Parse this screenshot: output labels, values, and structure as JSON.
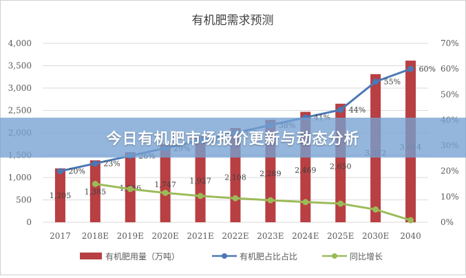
{
  "banner": {
    "text": "今日有机肥市场报价更新与动态分析"
  },
  "colors": {
    "bar": "#b83f42",
    "share_line": "#4a78b5",
    "growth_line": "#9bbb59",
    "axis_text": "#595959",
    "grid": "#d9d9d9"
  },
  "chart_data": {
    "type": "bar",
    "title": "有机肥需求预测",
    "categories": [
      "2017",
      "2018E",
      "2019E",
      "2020E",
      "2021E",
      "2022E",
      "2023E",
      "2024E",
      "2025E",
      "2030E",
      "2040"
    ],
    "y_left": {
      "ylim": [
        0,
        4000
      ],
      "ticks": [
        "0",
        "500",
        "1,000",
        "1,500",
        "2,000",
        "2,500",
        "3,000",
        "3,500",
        "4,000"
      ]
    },
    "y_right": {
      "ylim": [
        0,
        70
      ],
      "ticks": [
        "0%",
        "10%",
        "20%",
        "30%",
        "40%",
        "50%",
        "60%",
        "70%"
      ]
    },
    "series": [
      {
        "name": "有机肥用量（万吨）",
        "kind": "bar",
        "axis": "left",
        "values": [
          1205,
          1385,
          1566,
          1747,
          1927,
          2108,
          2289,
          2469,
          2650,
          3312,
          3614
        ],
        "labels": [
          "1,205",
          "1,385",
          "1,566",
          "1,747",
          "1,927",
          "2,108",
          "2,289",
          "2,469",
          "2,650",
          "3,312",
          "3,614"
        ]
      },
      {
        "name": "有机肥占比占比",
        "kind": "line",
        "axis": "right",
        "values": [
          20,
          23,
          26,
          29,
          32,
          35,
          38,
          41,
          44,
          55,
          60
        ],
        "labels": [
          "20%",
          "23%",
          "26%",
          "29%",
          "32%",
          "35%",
          "38%",
          "41%",
          "44%",
          "55%",
          "60%"
        ]
      },
      {
        "name": "同比增长",
        "kind": "line",
        "axis": "right",
        "values": [
          null,
          15,
          13,
          11.5,
          10.3,
          9.4,
          8.6,
          7.9,
          7.3,
          5,
          0.8
        ]
      }
    ]
  }
}
